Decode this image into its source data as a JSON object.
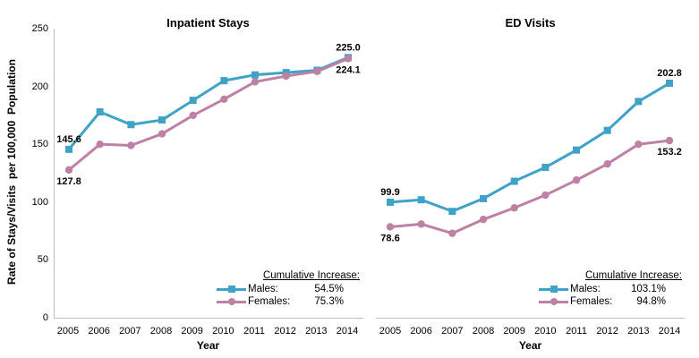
{
  "y_axis": {
    "label": "Rate of Stays/Visits  per 100,000  Population",
    "ticks": [
      250,
      200,
      150,
      100,
      50,
      0
    ],
    "range": [
      0,
      250
    ]
  },
  "colors": {
    "males": "#3fa2c7",
    "females": "#be81a4",
    "axis": "#bfbfbf"
  },
  "chart_data": [
    {
      "type": "line",
      "title": "Inpatient Stays",
      "xlabel": "Year",
      "ylabel": "Rate of Stays/Visits per 100,000 Population",
      "ylim": [
        0,
        250
      ],
      "grid": false,
      "x": [
        2005,
        2006,
        2007,
        2008,
        2009,
        2010,
        2011,
        2012,
        2013,
        2014
      ],
      "series": [
        {
          "name": "Males",
          "marker": "square",
          "color": "#3fa2c7",
          "values": [
            145.6,
            178,
            167,
            171,
            188,
            205,
            210,
            212,
            214,
            225.0
          ]
        },
        {
          "name": "Females",
          "marker": "circle",
          "color": "#be81a4",
          "values": [
            127.8,
            150,
            149,
            159,
            175,
            189,
            204,
            209,
            213,
            224.1
          ]
        }
      ],
      "point_labels": [
        {
          "series": 0,
          "index": 0,
          "text": "145.6",
          "position": "above"
        },
        {
          "series": 1,
          "index": 0,
          "text": "127.8",
          "position": "below"
        },
        {
          "series": 0,
          "index": 9,
          "text": "225.0",
          "position": "above"
        },
        {
          "series": 1,
          "index": 9,
          "text": "224.1",
          "position": "below"
        }
      ],
      "legend": {
        "header": "Cumulative Increase:",
        "position": "bottom-right",
        "rows": [
          {
            "label": "Males:",
            "value": "54.5%"
          },
          {
            "label": "Females:",
            "value": "75.3%"
          }
        ]
      }
    },
    {
      "type": "line",
      "title": "ED Visits",
      "xlabel": "Year",
      "ylabel": "Rate of Stays/Visits per 100,000 Population",
      "ylim": [
        0,
        250
      ],
      "grid": false,
      "x": [
        2005,
        2006,
        2007,
        2008,
        2009,
        2010,
        2011,
        2012,
        2013,
        2014
      ],
      "series": [
        {
          "name": "Males",
          "marker": "square",
          "color": "#3fa2c7",
          "values": [
            99.9,
            102,
            92,
            103,
            118,
            130,
            145,
            162,
            187,
            202.8
          ]
        },
        {
          "name": "Females",
          "marker": "circle",
          "color": "#be81a4",
          "values": [
            78.6,
            81,
            73,
            85,
            95,
            106,
            119,
            133,
            150,
            153.2
          ]
        }
      ],
      "point_labels": [
        {
          "series": 0,
          "index": 0,
          "text": "99.9",
          "position": "above"
        },
        {
          "series": 1,
          "index": 0,
          "text": "78.6",
          "position": "below"
        },
        {
          "series": 0,
          "index": 9,
          "text": "202.8",
          "position": "above"
        },
        {
          "series": 1,
          "index": 9,
          "text": "153.2",
          "position": "below"
        }
      ],
      "legend": {
        "header": "Cumulative Increase:",
        "position": "bottom-right",
        "rows": [
          {
            "label": "Males:",
            "value": "103.1%"
          },
          {
            "label": "Females:",
            "value": "94.8%"
          }
        ]
      }
    }
  ]
}
